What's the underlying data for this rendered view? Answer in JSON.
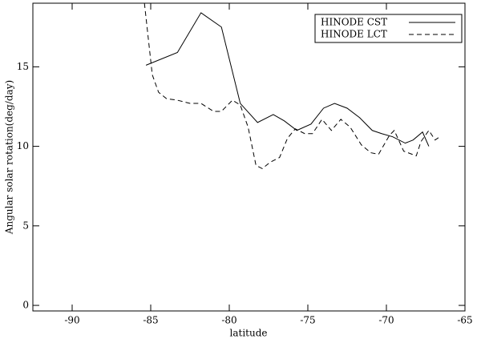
{
  "chart_data": {
    "type": "line",
    "x_label": "latitude",
    "y_label": "Angular solar rotation(deg/day)",
    "xlim": [
      -92.5,
      -65
    ],
    "xticks": [
      -90,
      -85,
      -80,
      -75,
      -70,
      -65
    ],
    "ylim": [
      -0.35,
      19
    ],
    "yticks": [
      0,
      5,
      10,
      15
    ],
    "legend": "upper right",
    "series": [
      {
        "name": "HINODE CST",
        "color": "#000000",
        "dash": "solid",
        "x": [
          -85.3,
          -83.3,
          -81.8,
          -80.5,
          -79.3,
          -78.2,
          -77.2,
          -76.5,
          -75.7,
          -74.8,
          -74.0,
          -73.3,
          -72.5,
          -71.7,
          -70.9,
          -70.3,
          -69.6,
          -68.8,
          -68.3,
          -67.7,
          -67.3
        ],
        "values": [
          15.1,
          15.9,
          18.4,
          17.5,
          12.7,
          11.5,
          12.0,
          11.6,
          11.0,
          11.4,
          12.4,
          12.7,
          12.4,
          11.8,
          11.0,
          10.8,
          10.6,
          10.2,
          10.4,
          10.9,
          10.0
        ]
      },
      {
        "name": "HINODE LCT",
        "color": "#000000",
        "dash": "dashed",
        "x": [
          -85.4,
          -84.9,
          -84.5,
          -84.0,
          -83.3,
          -82.5,
          -81.8,
          -81.0,
          -80.5,
          -79.8,
          -79.3,
          -78.8,
          -78.3,
          -77.9,
          -77.4,
          -76.8,
          -76.3,
          -75.8,
          -75.2,
          -74.7,
          -74.1,
          -73.5,
          -72.9,
          -72.3,
          -71.6,
          -71.0,
          -70.5,
          -69.8,
          -69.5,
          -68.9,
          -68.1,
          -67.8,
          -67.3,
          -66.9,
          -66.6
        ],
        "values": [
          19.0,
          14.5,
          13.4,
          13.0,
          12.9,
          12.7,
          12.7,
          12.2,
          12.2,
          12.9,
          12.6,
          11.2,
          8.8,
          8.6,
          9.0,
          9.3,
          10.5,
          11.1,
          10.8,
          10.8,
          11.7,
          11.0,
          11.7,
          11.2,
          10.1,
          9.6,
          9.5,
          10.7,
          11.0,
          9.7,
          9.4,
          10.3,
          11.0,
          10.4,
          10.6
        ]
      }
    ]
  }
}
